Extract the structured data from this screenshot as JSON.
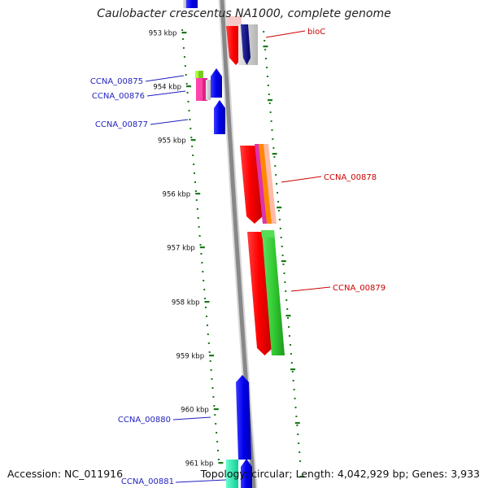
{
  "title": "Caulobacter crescentus NA1000, complete genome",
  "footer": {
    "accession": "Accession: NC_011916",
    "topology": "Topology: circular; Length: 4,042,929 bp; Genes: 3,933"
  },
  "tick_labels": [
    "953 kbp",
    "954 kbp",
    "955 kbp",
    "956 kbp",
    "957 kbp",
    "958 kbp",
    "959 kbp",
    "960 kbp",
    "961 kbp"
  ],
  "colors": {
    "backbone": "#888888",
    "tick": "#1a7a1a",
    "gene_blue": "#1515dd",
    "gene_red": "#ee1111",
    "gene_green": "#33cc33",
    "gene_cyan": "#22ddaa",
    "label_blue": "#1f1fbf",
    "label_red": "#cc0000"
  },
  "gene_labels": [
    {
      "name": "bioC",
      "strand": "red"
    },
    {
      "name": "CCNA_00875",
      "strand": "blue"
    },
    {
      "name": "CCNA_00876",
      "strand": "blue"
    },
    {
      "name": "CCNA_00877",
      "strand": "blue"
    },
    {
      "name": "CCNA_00878",
      "strand": "red"
    },
    {
      "name": "CCNA_00879",
      "strand": "red"
    },
    {
      "name": "CCNA_00880",
      "strand": "blue"
    },
    {
      "name": "CCNA_00881",
      "strand": "blue"
    }
  ]
}
